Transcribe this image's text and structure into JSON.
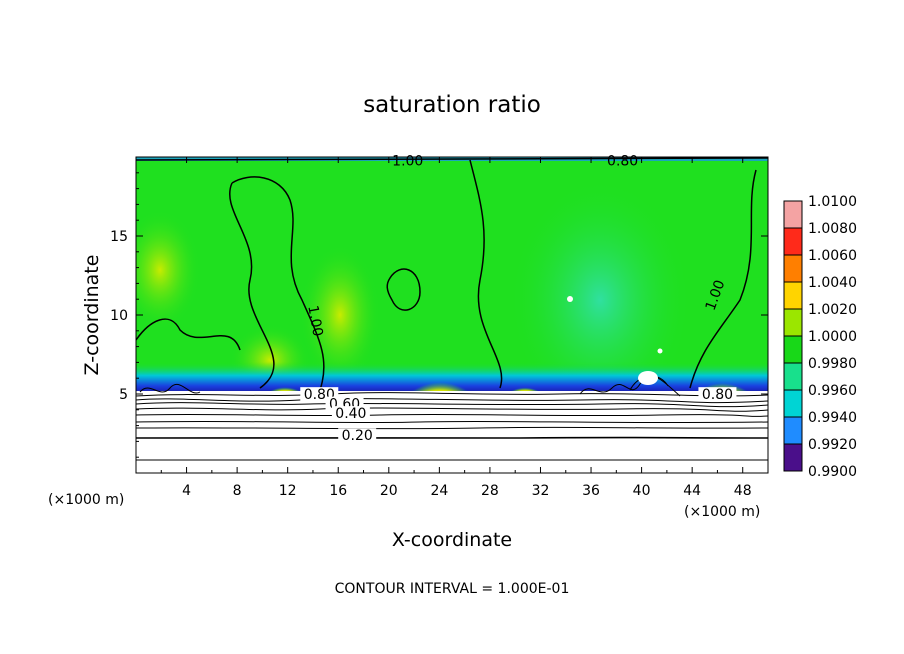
{
  "chart_data": {
    "type": "contour",
    "title": "saturation ratio",
    "xlabel": "X-coordinate",
    "ylabel": "Z-coordinate",
    "x_unit": "(×1000 m)",
    "z_unit": "(×1000 m)",
    "xlim": [
      0,
      50
    ],
    "ylim": [
      0,
      20
    ],
    "x_ticks": [
      4,
      8,
      12,
      16,
      20,
      24,
      28,
      32,
      36,
      40,
      44,
      48
    ],
    "y_ticks": [
      5,
      10,
      15
    ],
    "contour_interval_text": "CONTOUR INTERVAL =  1.000E-01",
    "contour_labels": [
      {
        "text": "1.00",
        "x": 21.5,
        "z": 19.6
      },
      {
        "text": "0.80",
        "x": 38.5,
        "z": 19.6
      },
      {
        "text": "1.00",
        "x": 14.0,
        "z": 9.6
      },
      {
        "text": "1.00",
        "x": 46.0,
        "z": 11.2
      },
      {
        "text": "0.80",
        "x": 14.5,
        "z": 4.8
      },
      {
        "text": "0.60",
        "x": 16.5,
        "z": 4.2
      },
      {
        "text": "0.40",
        "x": 17.0,
        "z": 3.6
      },
      {
        "text": "0.20",
        "x": 17.5,
        "z": 2.2
      },
      {
        "text": "0.80",
        "x": 46.0,
        "z": 4.8
      }
    ],
    "colorbar": {
      "levels": [
        1.01,
        1.008,
        1.006,
        1.004,
        1.002,
        1.0,
        0.998,
        0.996,
        0.994,
        0.992,
        0.99
      ],
      "level_labels": [
        "1.0100",
        "1.0080",
        "1.0060",
        "1.0040",
        "1.0020",
        "1.0000",
        "0.9980",
        "0.9960",
        "0.9940",
        "0.9920",
        "0.9900"
      ],
      "colors": [
        "#f4a3a3",
        "#ff2a1a",
        "#ff7f00",
        "#ffd400",
        "#9be600",
        "#18d818",
        "#18e08c",
        "#00d4d4",
        "#1f8cff",
        "#1a28d0",
        "#4a0f8a"
      ]
    },
    "background_color": "#1fe01f",
    "grid": false
  }
}
